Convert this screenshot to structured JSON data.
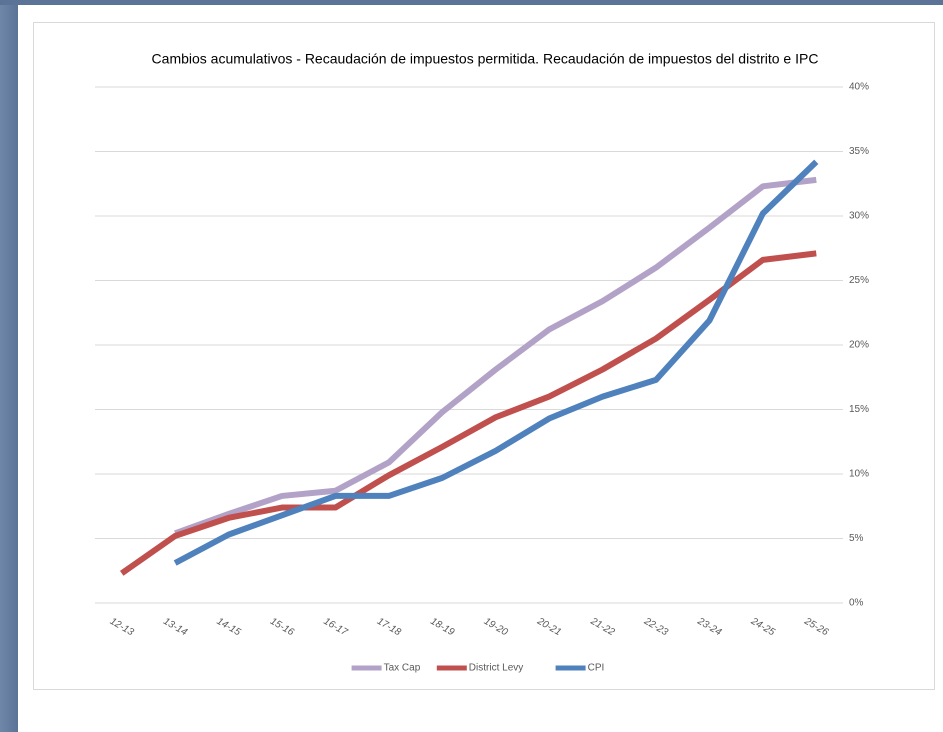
{
  "chart_data": {
    "type": "line",
    "title": "Cambios acumulativos - Recaudación de impuestos permitida. Recaudación de impuestos del distrito e IPC",
    "categories": [
      "12-13",
      "13-14",
      "14-15",
      "15-16",
      "16-17",
      "17-18",
      "18-19",
      "19-20",
      "20-21",
      "21-22",
      "22-23",
      "23-24",
      "24-25",
      "25-26"
    ],
    "series": [
      {
        "name": "Tax Cap",
        "color": "#b3a2c7",
        "values": [
          null,
          5.4,
          6.9,
          8.3,
          8.7,
          10.9,
          14.8,
          18.1,
          21.2,
          23.4,
          26.0,
          29.1,
          32.3,
          32.8
        ]
      },
      {
        "name": "District Levy",
        "color": "#c0504d",
        "values": [
          2.3,
          5.2,
          6.6,
          7.4,
          7.4,
          9.9,
          12.1,
          14.4,
          16.0,
          18.1,
          20.5,
          23.5,
          26.6,
          27.1
        ]
      },
      {
        "name": "CPI",
        "color": "#4f81bd",
        "values": [
          null,
          3.1,
          5.3,
          6.8,
          8.3,
          8.3,
          9.7,
          11.8,
          14.3,
          16.0,
          17.3,
          21.9,
          30.2,
          34.2
        ]
      }
    ],
    "ylim": [
      0,
      40
    ],
    "yticks": [
      {
        "value": 0,
        "label": "0%"
      },
      {
        "value": 5,
        "label": "5%"
      },
      {
        "value": 10,
        "label": "10%"
      },
      {
        "value": 15,
        "label": "15%"
      },
      {
        "value": 20,
        "label": "20%"
      },
      {
        "value": 25,
        "label": "25%"
      },
      {
        "value": 30,
        "label": "30%"
      },
      {
        "value": 35,
        "label": "35%"
      },
      {
        "value": 40,
        "label": "40%"
      }
    ],
    "grid": true,
    "legend": "bottom"
  }
}
